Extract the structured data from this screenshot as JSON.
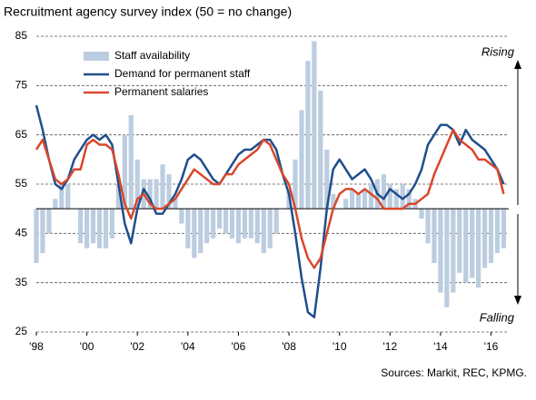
{
  "chart_data": {
    "type": "bar-line",
    "title": "Recruitment agency survey index (50 = no change)",
    "source": "Sources: Markit, REC, KPMG.",
    "annotations": [
      "Rising",
      "Falling"
    ],
    "baseline": 50,
    "xlim": [
      1998,
      2016.7
    ],
    "ylim": [
      25,
      85
    ],
    "yticks": [
      25,
      35,
      45,
      55,
      65,
      75,
      85
    ],
    "xticks": [
      {
        "value": 1998,
        "label": "'98"
      },
      {
        "value": 2000,
        "label": "'00"
      },
      {
        "value": 2002,
        "label": "'02"
      },
      {
        "value": 2004,
        "label": "'04"
      },
      {
        "value": 2006,
        "label": "'06"
      },
      {
        "value": 2008,
        "label": "'08"
      },
      {
        "value": 2010,
        "label": "'10"
      },
      {
        "value": 2012,
        "label": "'12"
      },
      {
        "value": 2014,
        "label": "'14"
      },
      {
        "value": 2016,
        "label": "'16"
      }
    ],
    "grid": true,
    "x": [
      1998,
      1998.25,
      1998.5,
      1998.75,
      1999,
      1999.25,
      1999.5,
      1999.75,
      2000,
      2000.25,
      2000.5,
      2000.75,
      2001,
      2001.25,
      2001.5,
      2001.75,
      2002,
      2002.25,
      2002.5,
      2002.75,
      2003,
      2003.25,
      2003.5,
      2003.75,
      2004,
      2004.25,
      2004.5,
      2004.75,
      2005,
      2005.25,
      2005.5,
      2005.75,
      2006,
      2006.25,
      2006.5,
      2006.75,
      2007,
      2007.25,
      2007.5,
      2007.75,
      2008,
      2008.25,
      2008.5,
      2008.75,
      2009,
      2009.25,
      2009.5,
      2009.75,
      2010,
      2010.25,
      2010.5,
      2010.75,
      2011,
      2011.25,
      2011.5,
      2011.75,
      2012,
      2012.25,
      2012.5,
      2012.75,
      2013,
      2013.25,
      2013.5,
      2013.75,
      2014,
      2014.25,
      2014.5,
      2014.75,
      2015,
      2015.25,
      2015.5,
      2015.75,
      2016,
      2016.25,
      2016.5
    ],
    "series": [
      {
        "name": "Staff availability",
        "kind": "bar",
        "color": "#bccde0",
        "values": [
          39,
          41,
          45,
          52,
          55,
          55,
          50,
          43,
          42,
          43,
          42,
          42,
          44,
          55,
          65,
          69,
          60,
          56,
          56,
          56,
          59,
          57,
          52,
          47,
          42,
          40,
          41,
          43,
          44,
          46,
          45,
          44,
          43,
          44,
          44,
          43,
          41,
          42,
          45,
          50,
          54,
          60,
          70,
          80,
          84,
          74,
          62,
          53,
          50,
          52,
          54,
          53,
          54,
          55,
          56,
          57,
          55,
          54,
          55,
          54,
          52,
          48,
          43,
          39,
          33,
          30,
          33,
          37,
          35,
          36,
          34,
          38,
          39,
          41,
          42
        ]
      },
      {
        "name": "Demand for permanent staff",
        "kind": "line",
        "color": "#1f4e8c",
        "values": [
          71,
          66,
          60,
          55,
          54,
          56,
          60,
          62,
          64,
          65,
          64,
          65,
          63,
          55,
          47,
          43,
          50,
          54,
          52,
          49,
          49,
          51,
          53,
          56,
          60,
          61,
          60,
          58,
          56,
          55,
          57,
          59,
          61,
          62,
          62,
          63,
          64,
          64,
          62,
          57,
          53,
          45,
          36,
          29,
          28,
          38,
          50,
          58,
          60,
          58,
          56,
          57,
          58,
          56,
          53,
          52,
          54,
          53,
          52,
          53,
          55,
          58,
          63,
          65,
          67,
          67,
          66,
          63,
          66,
          64,
          63,
          62,
          60,
          58,
          55
        ]
      },
      {
        "name": "Permanent salaries",
        "kind": "line",
        "color": "#d9472b",
        "values": [
          62,
          64,
          60,
          56,
          55,
          56,
          58,
          58,
          63,
          64,
          63,
          63,
          62,
          57,
          51,
          48,
          52,
          53,
          51,
          50,
          50,
          51,
          52,
          54,
          56,
          58,
          57,
          56,
          55,
          55,
          57,
          57,
          59,
          60,
          61,
          62,
          64,
          63,
          60,
          57,
          55,
          50,
          44,
          40,
          38,
          40,
          45,
          50,
          53,
          54,
          54,
          53,
          54,
          53,
          52,
          50,
          50,
          50,
          50,
          51,
          51,
          52,
          53,
          57,
          60,
          63,
          66,
          64,
          63,
          62,
          60,
          60,
          59,
          58,
          53
        ]
      }
    ]
  }
}
